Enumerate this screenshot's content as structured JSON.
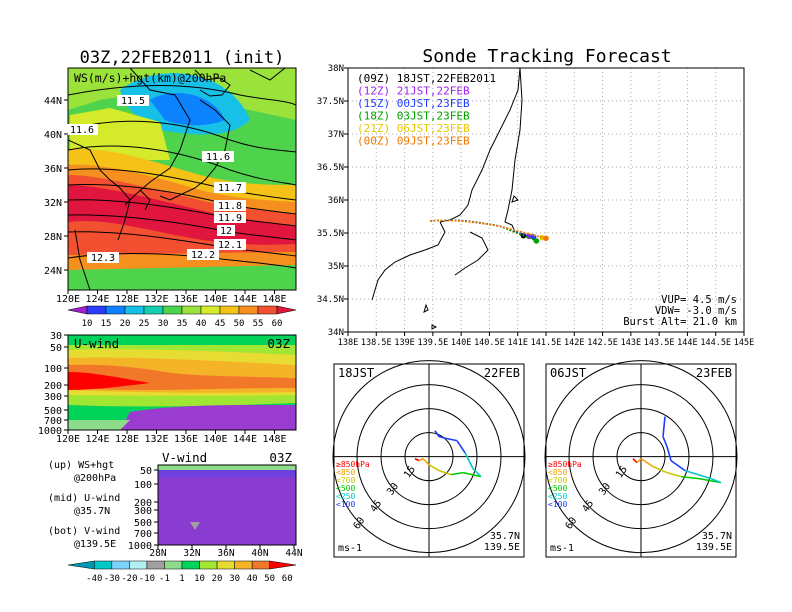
{
  "main_map": {
    "title": "03Z,22FEB2011 (init)",
    "label": "WS(m/s)+hgt(km)@200hPa",
    "lon_ticks": [
      "120E",
      "124E",
      "128E",
      "132E",
      "136E",
      "140E",
      "144E",
      "148E"
    ],
    "lat_ticks": [
      "44N",
      "40N",
      "36N",
      "32N",
      "28N",
      "24N"
    ],
    "contour_labels": [
      "11.5",
      "11.6",
      "11.6",
      "11.7",
      "11.8",
      "11.9",
      "12",
      "12.1",
      "12.2",
      "12.3"
    ],
    "colorbar_ticks": [
      "10",
      "15",
      "20",
      "25",
      "30",
      "35",
      "40",
      "45",
      "50",
      "55",
      "60"
    ],
    "colorbar_colors": [
      "#a01fd0",
      "#2b3cff",
      "#0c82ff",
      "#17c0e6",
      "#12d0b0",
      "#4fd34c",
      "#9be33b",
      "#d5ea2a",
      "#f5c218",
      "#f59020",
      "#f25030",
      "#e0163e"
    ]
  },
  "uwind": {
    "label": "U-wind",
    "time": "03Z",
    "y_ticks": [
      "30",
      "50",
      "100",
      "200",
      "300",
      "500",
      "700",
      "1000"
    ],
    "x_ticks": [
      "120E",
      "124E",
      "128E",
      "132E",
      "136E",
      "140E",
      "144E",
      "148E"
    ]
  },
  "vwind": {
    "label": "V-wind",
    "time": "03Z",
    "y_ticks": [
      "50",
      "100",
      "200",
      "300",
      "500",
      "700",
      "1000"
    ],
    "x_ticks": [
      "28N",
      "32N",
      "36N",
      "40N",
      "44N"
    ],
    "colorbar_ticks": [
      "-40",
      "-30",
      "-20",
      "-10",
      "-1",
      "1",
      "10",
      "20",
      "30",
      "40",
      "50",
      "60"
    ],
    "colorbar_colors": [
      "#0096b4",
      "#00c8c8",
      "#7ad2ff",
      "#b4f0f0",
      "#a0a0a0",
      "#8cdc8c",
      "#00d25a",
      "#a0e632",
      "#e6dc32",
      "#f5b428",
      "#f07828",
      "#ff0000"
    ]
  },
  "legend_notes": [
    {
      "line1": "(up) WS+hgt",
      "line2": "@200hPa"
    },
    {
      "line1": "(mid) U-wind",
      "line2": "@35.7N"
    },
    {
      "line1": "(bot) V-wind",
      "line2": "@139.5E"
    }
  ],
  "forecast": {
    "title": "Sonde Tracking Forecast",
    "x_ticks": [
      "138E",
      "138.5E",
      "139E",
      "139.5E",
      "140E",
      "140.5E",
      "141E",
      "141.5E",
      "142E",
      "142.5E",
      "143E",
      "143.5E",
      "144E",
      "144.5E",
      "145E"
    ],
    "y_ticks": [
      "38N",
      "37.5N",
      "37N",
      "36.5N",
      "36N",
      "35.5N",
      "35N",
      "34.5N",
      "34N"
    ],
    "launches": [
      {
        "text": "(09Z) 18JST,22FEB2011",
        "color": "#000000"
      },
      {
        "text": "(12Z) 21JST,22FEB",
        "color": "#a020f0"
      },
      {
        "text": "(15Z) 00JST,23FEB",
        "color": "#1e3cff"
      },
      {
        "text": "(18Z) 03JST,23FEB",
        "color": "#00a000"
      },
      {
        "text": "(21Z) 06JST,23FEB",
        "color": "#e6c800"
      },
      {
        "text": "(00Z) 09JST,23FEB",
        "color": "#f07800"
      }
    ],
    "params": [
      "VUP= 4.5 m/s",
      "VDW= -3.0 m/s",
      "Burst Alt= 21.0 km"
    ]
  },
  "hodo_left": {
    "time": "18JST",
    "date": "22FEB",
    "ring_labels": [
      "15",
      "30",
      "45",
      "60"
    ],
    "unit": "ms-1",
    "lat": "35.7N",
    "lon": "139.5E",
    "levels": [
      {
        "text": "≥850hPa",
        "color": "#ff0000"
      },
      {
        "text": "<850",
        "color": "#f5a000"
      },
      {
        "text": "<700",
        "color": "#c8c800"
      },
      {
        "text": "<500",
        "color": "#00c800"
      },
      {
        "text": "<250",
        "color": "#00c8c8"
      },
      {
        "text": "<100",
        "color": "#1e3cff"
      }
    ]
  },
  "hodo_right": {
    "time": "06JST",
    "date": "23FEB",
    "ring_labels": [
      "15",
      "30",
      "45",
      "60"
    ],
    "unit": "ms-1",
    "lat": "35.7N",
    "lon": "139.5E",
    "levels": [
      {
        "text": "≥850hPa",
        "color": "#ff0000"
      },
      {
        "text": "<850",
        "color": "#f5a000"
      },
      {
        "text": "<700",
        "color": "#c8c800"
      },
      {
        "text": "<500",
        "color": "#00c800"
      },
      {
        "text": "<250",
        "color": "#00c8c8"
      },
      {
        "text": "<100",
        "color": "#1e3cff"
      }
    ]
  },
  "chart_data": [
    {
      "type": "heatmap",
      "title": "03Z,22FEB2011 (init)",
      "variable": "WS(m/s)+hgt(km)@200hPa",
      "x_range": [
        "120E",
        "150E"
      ],
      "y_range": [
        "20N",
        "48N"
      ],
      "contour_values_km": [
        11.5,
        11.6,
        11.6,
        11.7,
        11.8,
        11.9,
        12,
        12.1,
        12.2,
        12.3
      ],
      "colorbar_ticks": [
        10,
        15,
        20,
        25,
        30,
        35,
        40,
        45,
        50,
        55,
        60
      ]
    },
    {
      "type": "heatmap",
      "title": "U-wind",
      "time": "03Z",
      "y_levels_hPa": [
        30,
        50,
        100,
        200,
        300,
        500,
        700,
        1000
      ],
      "x_range": [
        "120E",
        "150E"
      ]
    },
    {
      "type": "heatmap",
      "title": "V-wind",
      "time": "03Z",
      "y_levels_hPa": [
        50,
        100,
        200,
        300,
        500,
        700,
        1000
      ],
      "x_range": [
        "28N",
        "44N"
      ],
      "colorbar_ticks": [
        -40,
        -30,
        -20,
        -10,
        -1,
        1,
        10,
        20,
        30,
        40,
        50,
        60
      ]
    },
    {
      "type": "line",
      "title": "Sonde Tracking Forecast",
      "x_range": [
        138,
        145
      ],
      "y_range": [
        34,
        38
      ],
      "series": [
        {
          "name": "(09Z) 18JST,22FEB2011",
          "endpoint": [
            141.1,
            35.46
          ]
        },
        {
          "name": "(12Z) 21JST,22FEB",
          "endpoint": [
            141.2,
            35.45
          ]
        },
        {
          "name": "(15Z) 00JST,23FEB",
          "endpoint": [
            141.28,
            35.44
          ]
        },
        {
          "name": "(18Z) 03JST,23FEB",
          "endpoint": [
            141.33,
            35.38
          ]
        },
        {
          "name": "(21Z) 06JST,23FEB",
          "endpoint": [
            141.43,
            35.43
          ]
        },
        {
          "name": "(00Z) 09JST,23FEB",
          "endpoint": [
            141.5,
            35.42
          ]
        }
      ]
    }
  ]
}
